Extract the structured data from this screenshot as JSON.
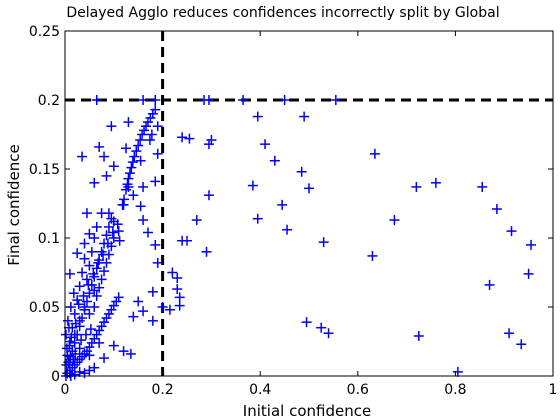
{
  "chart_data": {
    "type": "scatter",
    "title": "Delayed Agglo reduces confidences incorrectly split by Global",
    "xlabel": "Initial confidence",
    "ylabel": "Final confidence",
    "xlim": [
      0,
      1
    ],
    "ylim": [
      0,
      0.25
    ],
    "x_ticks": [
      0,
      0.2,
      0.4,
      0.6,
      0.8,
      1
    ],
    "y_ticks": [
      0,
      0.05,
      0.1,
      0.15,
      0.2,
      0.25
    ],
    "x_tick_labels": [
      "0",
      "0.2",
      "0.4",
      "0.6",
      "0.8",
      "1"
    ],
    "y_tick_labels": [
      "0",
      "0.05",
      "0.1",
      "0.15",
      "0.2",
      "0.25"
    ],
    "grid": false,
    "marker": "+",
    "marker_color": "#0000ff",
    "reference_lines": [
      {
        "orientation": "vertical",
        "x": 0.2,
        "style": "dashed",
        "color": "#000000"
      },
      {
        "orientation": "horizontal",
        "y": 0.2,
        "style": "dashed",
        "color": "#000000"
      }
    ],
    "points": [
      [
        0.065,
        0.2
      ],
      [
        0.16,
        0.2
      ],
      [
        0.185,
        0.2
      ],
      [
        0.285,
        0.2
      ],
      [
        0.295,
        0.2
      ],
      [
        0.365,
        0.2
      ],
      [
        0.45,
        0.2
      ],
      [
        0.555,
        0.2
      ],
      [
        0.24,
        0.173
      ],
      [
        0.255,
        0.172
      ],
      [
        0.295,
        0.168
      ],
      [
        0.3,
        0.171
      ],
      [
        0.395,
        0.188
      ],
      [
        0.41,
        0.168
      ],
      [
        0.49,
        0.188
      ],
      [
        0.635,
        0.161
      ],
      [
        0.385,
        0.138
      ],
      [
        0.43,
        0.156
      ],
      [
        0.485,
        0.148
      ],
      [
        0.5,
        0.136
      ],
      [
        0.72,
        0.137
      ],
      [
        0.76,
        0.14
      ],
      [
        0.855,
        0.137
      ],
      [
        0.27,
        0.113
      ],
      [
        0.295,
        0.131
      ],
      [
        0.395,
        0.114
      ],
      [
        0.445,
        0.124
      ],
      [
        0.455,
        0.106
      ],
      [
        0.675,
        0.113
      ],
      [
        0.885,
        0.121
      ],
      [
        0.915,
        0.105
      ],
      [
        0.955,
        0.095
      ],
      [
        0.24,
        0.098
      ],
      [
        0.25,
        0.098
      ],
      [
        0.29,
        0.09
      ],
      [
        0.53,
        0.097
      ],
      [
        0.63,
        0.087
      ],
      [
        0.87,
        0.066
      ],
      [
        0.95,
        0.074
      ],
      [
        0.22,
        0.075
      ],
      [
        0.23,
        0.071
      ],
      [
        0.23,
        0.063
      ],
      [
        0.235,
        0.057
      ],
      [
        0.235,
        0.051
      ],
      [
        0.2,
        0.05
      ],
      [
        0.215,
        0.048
      ],
      [
        0.495,
        0.039
      ],
      [
        0.525,
        0.035
      ],
      [
        0.54,
        0.031
      ],
      [
        0.725,
        0.029
      ],
      [
        0.91,
        0.031
      ],
      [
        0.935,
        0.023
      ],
      [
        0.805,
        0.003
      ],
      [
        0.01,
        0.074
      ],
      [
        0.025,
        0.089
      ],
      [
        0.045,
        0.118
      ],
      [
        0.035,
        0.159
      ],
      [
        0.06,
        0.14
      ],
      [
        0.075,
        0.118
      ],
      [
        0.065,
        0.108
      ],
      [
        0.07,
        0.166
      ],
      [
        0.08,
        0.159
      ],
      [
        0.085,
        0.145
      ],
      [
        0.1,
        0.152
      ],
      [
        0.095,
        0.181
      ],
      [
        0.125,
        0.165
      ],
      [
        0.13,
        0.184
      ],
      [
        0.155,
        0.156
      ],
      [
        0.09,
        0.118
      ],
      [
        0.05,
        0.103
      ],
      [
        0.04,
        0.096
      ],
      [
        0.06,
        0.1
      ],
      [
        0.1,
        0.112
      ],
      [
        0.11,
        0.105
      ],
      [
        0.13,
        0.137
      ],
      [
        0.12,
        0.124
      ],
      [
        0.14,
        0.131
      ],
      [
        0.155,
        0.123
      ],
      [
        0.16,
        0.137
      ],
      [
        0.13,
        0.143
      ],
      [
        0.133,
        0.147
      ],
      [
        0.136,
        0.151
      ],
      [
        0.139,
        0.155
      ],
      [
        0.142,
        0.159
      ],
      [
        0.146,
        0.163
      ],
      [
        0.15,
        0.167
      ],
      [
        0.154,
        0.171
      ],
      [
        0.158,
        0.175
      ],
      [
        0.162,
        0.178
      ],
      [
        0.166,
        0.181
      ],
      [
        0.17,
        0.184
      ],
      [
        0.175,
        0.187
      ],
      [
        0.18,
        0.19
      ],
      [
        0.185,
        0.193
      ],
      [
        0.125,
        0.135
      ],
      [
        0.128,
        0.139
      ],
      [
        0.121,
        0.128
      ],
      [
        0.118,
        0.124
      ],
      [
        0.174,
        0.171
      ],
      [
        0.178,
        0.175
      ],
      [
        0.19,
        0.181
      ],
      [
        0.19,
        0.161
      ],
      [
        0.185,
        0.141
      ],
      [
        0.16,
        0.113
      ],
      [
        0.17,
        0.104
      ],
      [
        0.185,
        0.095
      ],
      [
        0.19,
        0.082
      ],
      [
        0.18,
        0.061
      ],
      [
        0.15,
        0.054
      ],
      [
        0.16,
        0.047
      ],
      [
        0.18,
        0.04
      ],
      [
        0.12,
        0.018
      ],
      [
        0.135,
        0.016
      ],
      [
        0.14,
        0.043
      ],
      [
        0.1,
        0.022
      ],
      [
        0.07,
        0.024
      ],
      [
        0.08,
        0.013
      ],
      [
        0.05,
        0.015
      ],
      [
        0.03,
        0.02
      ],
      [
        0.005,
        0.002
      ],
      [
        0.01,
        0.004
      ],
      [
        0.015,
        0.006
      ],
      [
        0.02,
        0.008
      ],
      [
        0.025,
        0.01
      ],
      [
        0.03,
        0.012
      ],
      [
        0.035,
        0.014
      ],
      [
        0.04,
        0.016
      ],
      [
        0.045,
        0.018
      ],
      [
        0.05,
        0.021
      ],
      [
        0.055,
        0.024
      ],
      [
        0.06,
        0.027
      ],
      [
        0.065,
        0.03
      ],
      [
        0.07,
        0.033
      ],
      [
        0.075,
        0.036
      ],
      [
        0.08,
        0.039
      ],
      [
        0.085,
        0.042
      ],
      [
        0.09,
        0.045
      ],
      [
        0.095,
        0.048
      ],
      [
        0.1,
        0.051
      ],
      [
        0.105,
        0.054
      ],
      [
        0.11,
        0.057
      ],
      [
        0.01,
        0.012
      ],
      [
        0.015,
        0.018
      ],
      [
        0.02,
        0.024
      ],
      [
        0.025,
        0.03
      ],
      [
        0.03,
        0.036
      ],
      [
        0.035,
        0.042
      ],
      [
        0.04,
        0.048
      ],
      [
        0.045,
        0.054
      ],
      [
        0.05,
        0.06
      ],
      [
        0.055,
        0.066
      ],
      [
        0.06,
        0.072
      ],
      [
        0.065,
        0.078
      ],
      [
        0.07,
        0.084
      ],
      [
        0.075,
        0.09
      ],
      [
        0.08,
        0.096
      ],
      [
        0.085,
        0.102
      ],
      [
        0.09,
        0.108
      ],
      [
        0.095,
        0.114
      ],
      [
        0.005,
        0.015
      ],
      [
        0.01,
        0.025
      ],
      [
        0.015,
        0.035
      ],
      [
        0.02,
        0.045
      ],
      [
        0.025,
        0.055
      ],
      [
        0.03,
        0.065
      ],
      [
        0.035,
        0.075
      ],
      [
        0.04,
        0.085
      ],
      [
        0.045,
        0.07
      ],
      [
        0.05,
        0.08
      ],
      [
        0.055,
        0.09
      ],
      [
        0.06,
        0.05
      ],
      [
        0.065,
        0.058
      ],
      [
        0.07,
        0.064
      ],
      [
        0.075,
        0.07
      ],
      [
        0.08,
        0.076
      ],
      [
        0.085,
        0.082
      ],
      [
        0.09,
        0.088
      ],
      [
        0.095,
        0.094
      ],
      [
        0.1,
        0.1
      ],
      [
        0.02,
        0.03
      ],
      [
        0.03,
        0.04
      ],
      [
        0.04,
        0.05
      ],
      [
        0.05,
        0.045
      ],
      [
        0.06,
        0.062
      ],
      [
        0.012,
        0.05
      ],
      [
        0.008,
        0.035
      ],
      [
        0.018,
        0.06
      ],
      [
        0.028,
        0.052
      ],
      [
        0.038,
        0.058
      ],
      [
        0.048,
        0.066
      ],
      [
        0.058,
        0.074
      ],
      [
        0.068,
        0.082
      ],
      [
        0.078,
        0.088
      ],
      [
        0.088,
        0.096
      ],
      [
        0.098,
        0.104
      ],
      [
        0.108,
        0.11
      ],
      [
        0.112,
        0.098
      ],
      [
        0.003,
        0.008
      ],
      [
        0.007,
        0.01
      ],
      [
        0.011,
        0.014
      ],
      [
        0.004,
        0.02
      ],
      [
        0.002,
        0.03
      ],
      [
        0.009,
        0.022
      ],
      [
        0.013,
        0.028
      ],
      [
        0.017,
        0.012
      ],
      [
        0.021,
        0.016
      ],
      [
        0.006,
        0.04
      ],
      [
        0.022,
        0.038
      ],
      [
        0.033,
        0.026
      ],
      [
        0.043,
        0.03
      ],
      [
        0.053,
        0.034
      ],
      [
        0.01,
        0.002
      ],
      [
        0.02,
        0.001
      ],
      [
        0.03,
        0.003
      ],
      [
        0.04,
        0.002
      ],
      [
        0.05,
        0.004
      ],
      [
        0.06,
        0.006
      ],
      [
        0.002,
        0.0
      ],
      [
        0.012,
        0.0
      ]
    ]
  }
}
